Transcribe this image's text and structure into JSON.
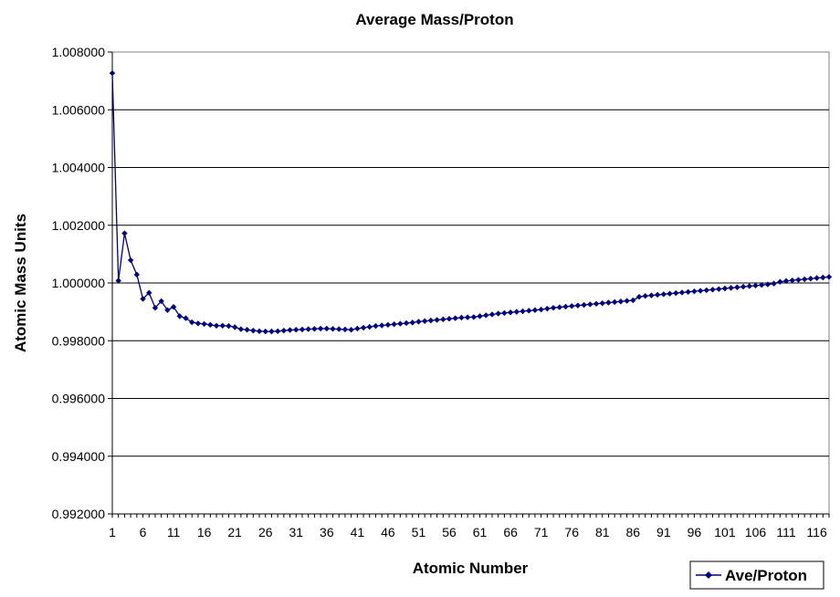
{
  "chart_data": {
    "type": "line",
    "title": "Average Mass/Proton",
    "xlabel": "Atomic Number",
    "ylabel": "Atomic Mass Units",
    "ylim": [
      0.992,
      1.008
    ],
    "xlim": [
      1,
      118
    ],
    "y_tick_labels": [
      "1.008000",
      "1.006000",
      "1.004000",
      "1.002000",
      "1.000000",
      "0.998000",
      "0.996000",
      "0.994000",
      "0.992000"
    ],
    "x_tick_labels": [
      "1",
      "6",
      "11",
      "16",
      "21",
      "26",
      "31",
      "36",
      "41",
      "46",
      "51",
      "56",
      "61",
      "66",
      "71",
      "76",
      "81",
      "86",
      "91",
      "96",
      "101",
      "106",
      "111",
      "116"
    ],
    "grid": "horizontal",
    "legend": {
      "position": "bottom-right",
      "entries": [
        "Ave/Proton"
      ]
    },
    "colors": {
      "series": "#000080",
      "grid": "#000000",
      "plot_bg": "#ffffff"
    },
    "series": [
      {
        "name": "Ave/Proton",
        "marker": "diamond",
        "values": [
          1.00727,
          1.00008,
          1.00172,
          1.00079,
          1.00029,
          0.99945,
          0.99966,
          0.99914,
          0.99937,
          0.99906,
          0.99917,
          0.99885,
          0.99878,
          0.99864,
          0.9986,
          0.99858,
          0.99855,
          0.99852,
          0.99852,
          0.99851,
          0.99847,
          0.9984,
          0.99838,
          0.99835,
          0.99833,
          0.99832,
          0.99832,
          0.99833,
          0.99835,
          0.99837,
          0.99838,
          0.99839,
          0.9984,
          0.99841,
          0.99842,
          0.99842,
          0.99841,
          0.9984,
          0.99839,
          0.99838,
          0.99842,
          0.99845,
          0.99848,
          0.99851,
          0.99853,
          0.99855,
          0.99857,
          0.99859,
          0.99861,
          0.99863,
          0.99866,
          0.99868,
          0.9987,
          0.99872,
          0.99874,
          0.99876,
          0.99878,
          0.9988,
          0.99881,
          0.99882,
          0.99885,
          0.99888,
          0.99891,
          0.99894,
          0.99896,
          0.99898,
          0.999,
          0.99902,
          0.99904,
          0.99906,
          0.99908,
          0.99911,
          0.99914,
          0.99916,
          0.99918,
          0.9992,
          0.99922,
          0.99924,
          0.99926,
          0.99928,
          0.9993,
          0.99932,
          0.99934,
          0.99936,
          0.99938,
          0.9994,
          0.99952,
          0.99955,
          0.99957,
          0.99959,
          0.99961,
          0.99963,
          0.99965,
          0.99967,
          0.99969,
          0.99971,
          0.99973,
          0.99975,
          0.99977,
          0.99979,
          0.99981,
          0.99983,
          0.99985,
          0.99987,
          0.99989,
          0.99991,
          0.99993,
          0.99995,
          0.99998,
          1.00004,
          1.00007,
          1.00009,
          1.00011,
          1.00013,
          1.00015,
          1.00017,
          1.00019,
          1.00021
        ]
      }
    ]
  }
}
